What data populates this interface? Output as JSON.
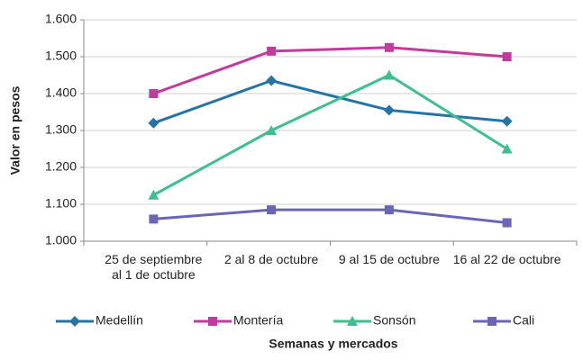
{
  "chart_data": {
    "type": "line",
    "x_label": "Semanas y mercados",
    "y_label": "Valor en pesos",
    "categories": [
      "25 de septiembre al 1 de octubre",
      "2 al 8 de octubre",
      "9 al 15 de octubre",
      "16 al 22 de octubre"
    ],
    "series": [
      {
        "name": "Medellín",
        "color": "#2474a6",
        "marker": "diamond",
        "values": [
          1320,
          1435,
          1355,
          1325
        ]
      },
      {
        "name": "Montería",
        "color": "#c23a9e",
        "marker": "square",
        "values": [
          1400,
          1515,
          1525,
          1500
        ]
      },
      {
        "name": "Sonsón",
        "color": "#3dbf8f",
        "marker": "triangle",
        "values": [
          1125,
          1300,
          1450,
          1250
        ]
      },
      {
        "name": "Cali",
        "color": "#6966b6",
        "marker": "square",
        "values": [
          1060,
          1085,
          1085,
          1050
        ]
      }
    ],
    "ylim": [
      1000,
      1600
    ],
    "yticks": [
      {
        "value": 1000,
        "label": "1.000"
      },
      {
        "value": 1100,
        "label": "1.100"
      },
      {
        "value": 1200,
        "label": "1.200"
      },
      {
        "value": 1300,
        "label": "1.300"
      },
      {
        "value": 1400,
        "label": "1.400"
      },
      {
        "value": 1500,
        "label": "1.500"
      },
      {
        "value": 1600,
        "label": "1.600"
      }
    ],
    "grid": true,
    "legend": "bottom"
  }
}
